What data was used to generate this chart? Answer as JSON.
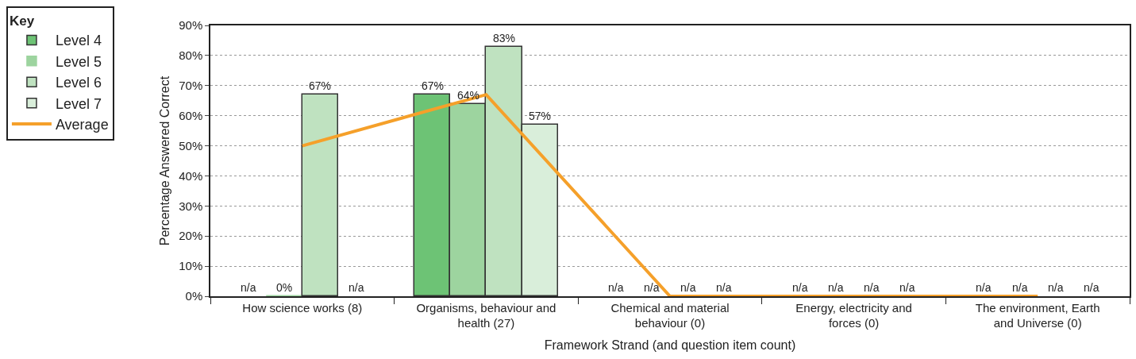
{
  "chart_data": {
    "type": "bar",
    "xlabel": "Framework Strand (and question item count)",
    "ylabel": "Percentage Answered Correct",
    "legend_title": "Key",
    "categories": [
      "How science works (8)",
      "Organisms, behaviour and health (27)",
      "Chemical and material behaviour (0)",
      "Energy, electricity and forces (0)",
      "The environment, Earth and Universe (0)"
    ],
    "series": [
      {
        "name": "Level 4",
        "color": "#6dc375",
        "values": [
          null,
          67,
          null,
          null,
          null
        ],
        "value_labels": [
          "n/a",
          "67%",
          "n/a",
          "n/a",
          "n/a"
        ]
      },
      {
        "name": "Level 5",
        "color": "#9dd49f",
        "values": [
          0,
          64,
          null,
          null,
          null
        ],
        "value_labels": [
          "0%",
          "64%",
          "n/a",
          "n/a",
          "n/a"
        ]
      },
      {
        "name": "Level 6",
        "color": "#bfe2c0",
        "values": [
          67,
          83,
          null,
          null,
          null
        ],
        "value_labels": [
          "67%",
          "83%",
          "n/a",
          "n/a",
          "n/a"
        ]
      },
      {
        "name": "Level 7",
        "color": "#d9eeda",
        "values": [
          null,
          57,
          null,
          null,
          null
        ],
        "value_labels": [
          "n/a",
          "57%",
          "n/a",
          "n/a",
          "n/a"
        ]
      },
      {
        "name": "Average",
        "type": "line",
        "color": "#f5a02a",
        "values": [
          50,
          67,
          0,
          0,
          0
        ]
      }
    ],
    "ylim": [
      0,
      90
    ],
    "yticks": [
      {
        "value": 0,
        "label": "0%"
      },
      {
        "value": 10,
        "label": "10%"
      },
      {
        "value": 20,
        "label": "20%"
      },
      {
        "value": 30,
        "label": "30%"
      },
      {
        "value": 40,
        "label": "40%"
      },
      {
        "value": 50,
        "label": "50%"
      },
      {
        "value": 60,
        "label": "60%"
      },
      {
        "value": 70,
        "label": "70%"
      },
      {
        "value": 80,
        "label": "80%"
      },
      {
        "value": 90,
        "label": "90%"
      }
    ],
    "grid": "y",
    "legend": "top left"
  }
}
